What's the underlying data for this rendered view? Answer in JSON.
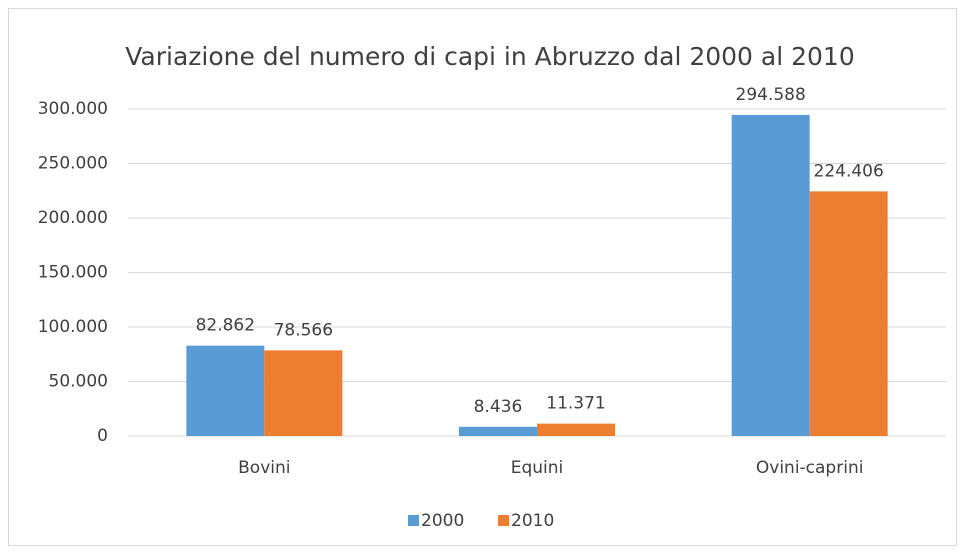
{
  "chart_data": {
    "type": "bar",
    "title": "Variazione del numero di capi in Abruzzo dal 2000 al 2010",
    "categories": [
      "Bovini",
      "Equini",
      "Ovini-caprini"
    ],
    "series": [
      {
        "name": "2000",
        "color": "#5b9bd5",
        "values": [
          82862,
          8436,
          294588
        ],
        "value_labels": [
          "82.862",
          "8.436",
          "294.588"
        ]
      },
      {
        "name": "2010",
        "color": "#ed7d31",
        "values": [
          78566,
          11371,
          224406
        ],
        "value_labels": [
          "78.566",
          "11.371",
          "224.406"
        ]
      }
    ],
    "ylim": [
      0,
      300000
    ],
    "yticks": [
      0,
      {
        "value": 50000,
        "label": "50.000"
      },
      {
        "value": 100000,
        "label": "100.000"
      },
      {
        "value": 150000,
        "label": "150.000"
      },
      {
        "value": 200000,
        "label": "200.000"
      },
      {
        "value": 250000,
        "label": "250.000"
      },
      {
        "value": 300000,
        "label": "300.000"
      }
    ],
    "grid": true,
    "legend": "bottom"
  }
}
